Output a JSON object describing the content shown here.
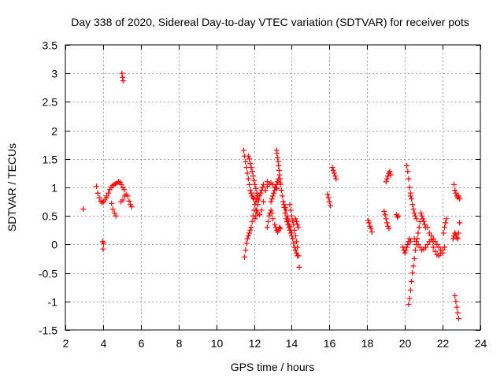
{
  "chart_data": {
    "type": "scatter",
    "title": "Day 338 of 2020, Sidereal Day-to-day VTEC variation (SDTVAR) for receiver pots",
    "xlabel": "GPS time / hours",
    "ylabel": "SDTVAR / TECUs",
    "xlim": [
      2,
      24
    ],
    "ylim": [
      -1.5,
      3.5
    ],
    "x_ticks": [
      2,
      4,
      6,
      8,
      10,
      12,
      14,
      16,
      18,
      20,
      22,
      24
    ],
    "x_tick_labels": [
      "2",
      "4",
      "6",
      "8",
      "10",
      "12",
      "14",
      "16",
      "18",
      "20",
      "22",
      "24"
    ],
    "y_ticks": [
      -1.5,
      -1,
      -0.5,
      0,
      0.5,
      1,
      1.5,
      2,
      2.5,
      3,
      3.5
    ],
    "y_tick_labels": [
      "-1.5",
      "-1",
      "-0.5",
      "0",
      "0.5",
      "1",
      "1.5",
      "2",
      "2.5",
      "3",
      "3.5"
    ],
    "grid": true,
    "marker": "+",
    "color": "#ff0000",
    "segments": [
      {
        "x": [
          2.95
        ],
        "y": [
          0.62
        ]
      },
      {
        "x": [
          3.65,
          3.72,
          3.8,
          3.88,
          3.95,
          4.02,
          4.1,
          4.18
        ],
        "y": [
          1.02,
          0.9,
          0.82,
          0.76,
          0.73,
          0.75,
          0.78,
          0.82
        ]
      },
      {
        "x": [
          3.98,
          4.0,
          4.03
        ],
        "y": [
          0.05,
          -0.08,
          0.02
        ]
      },
      {
        "x": [
          4.2,
          4.28,
          4.35,
          4.42,
          4.5,
          4.58,
          4.66,
          4.74,
          4.82,
          4.9,
          4.97,
          5.05,
          5.12
        ],
        "y": [
          0.85,
          0.9,
          0.96,
          1.0,
          1.03,
          1.05,
          1.06,
          1.08,
          1.1,
          1.09,
          1.05,
          1.0,
          0.96
        ]
      },
      {
        "x": [
          4.45,
          4.52,
          4.6,
          4.68
        ],
        "y": [
          0.72,
          0.62,
          0.55,
          0.5
        ]
      },
      {
        "x": [
          5.0,
          5.03,
          5.06
        ],
        "y": [
          3.0,
          2.93,
          2.87
        ]
      },
      {
        "x": [
          4.95,
          5.05,
          5.15,
          5.22,
          5.3,
          5.38,
          5.45,
          5.52
        ],
        "y": [
          0.75,
          0.78,
          0.85,
          0.88,
          0.85,
          0.76,
          0.7,
          0.66
        ]
      },
      {
        "x": [
          11.45,
          11.5,
          11.55,
          11.6,
          11.65,
          11.7,
          11.75,
          11.8,
          11.85,
          11.9,
          11.95,
          12.0
        ],
        "y": [
          1.65,
          1.55,
          1.45,
          1.35,
          1.25,
          1.15,
          1.05,
          0.95,
          0.9,
          0.85,
          0.82,
          0.8
        ]
      },
      {
        "x": [
          11.5,
          11.55,
          11.6,
          11.65,
          11.7,
          11.75,
          11.8,
          11.85,
          11.9,
          11.95,
          12.0,
          12.05,
          12.1,
          12.15,
          12.2
        ],
        "y": [
          -0.22,
          -0.1,
          0.02,
          0.1,
          0.15,
          0.2,
          0.25,
          0.3,
          0.4,
          0.5,
          0.6,
          0.7,
          0.75,
          0.8,
          0.85
        ]
      },
      {
        "x": [
          11.7,
          11.75,
          11.8,
          11.85,
          11.9,
          11.95,
          12.0,
          12.05,
          12.1,
          12.15,
          12.2
        ],
        "y": [
          1.55,
          1.5,
          1.42,
          1.35,
          1.28,
          1.2,
          1.12,
          1.05,
          0.98,
          0.9,
          0.85
        ]
      },
      {
        "x": [
          12.05,
          12.1,
          12.15,
          12.2,
          12.25,
          12.3,
          12.35,
          12.4,
          12.45,
          12.5
        ],
        "y": [
          0.45,
          0.5,
          0.6,
          0.7,
          0.78,
          0.85,
          0.9,
          0.95,
          1.0,
          1.05
        ]
      },
      {
        "x": [
          12.1,
          12.2,
          12.3,
          12.4,
          12.5,
          12.6,
          12.7
        ],
        "y": [
          0.6,
          0.55,
          0.52,
          0.6,
          0.75,
          0.95,
          1.1
        ]
      },
      {
        "x": [
          12.6,
          12.7,
          12.8,
          12.9,
          13.0,
          13.1,
          13.2
        ],
        "y": [
          0.95,
          1.02,
          1.05,
          1.08,
          1.05,
          1.0,
          0.98
        ]
      },
      {
        "x": [
          12.7,
          12.75,
          12.8,
          12.85,
          12.9,
          12.95,
          13.0
        ],
        "y": [
          0.3,
          0.4,
          0.5,
          0.55,
          0.6,
          0.55,
          0.45
        ]
      },
      {
        "x": [
          12.9,
          12.95,
          13.0,
          13.05,
          13.1,
          13.15,
          13.2,
          13.25,
          13.3
        ],
        "y": [
          0.75,
          0.8,
          0.85,
          0.9,
          0.95,
          1.0,
          1.05,
          1.1,
          1.15
        ]
      },
      {
        "x": [
          13.2,
          13.22,
          13.25,
          13.28,
          13.3,
          13.33,
          13.35,
          13.38,
          13.4
        ],
        "y": [
          1.65,
          1.6,
          1.52,
          1.45,
          1.38,
          1.3,
          1.22,
          1.15,
          1.08
        ]
      },
      {
        "x": [
          13.1,
          13.15,
          13.2,
          13.25,
          13.3,
          13.35,
          13.4
        ],
        "y": [
          0.35,
          0.3,
          0.25,
          0.22,
          0.25,
          0.3,
          0.28
        ]
      },
      {
        "x": [
          13.4,
          13.45,
          13.5,
          13.55,
          13.6,
          13.65,
          13.7,
          13.75,
          13.8,
          13.85,
          13.9,
          13.95,
          14.0
        ],
        "y": [
          1.05,
          0.95,
          0.85,
          0.75,
          0.65,
          0.55,
          0.45,
          0.4,
          0.35,
          0.3,
          0.25,
          0.2,
          0.15
        ]
      },
      {
        "x": [
          13.6,
          13.65,
          13.7,
          13.75,
          13.8,
          13.85,
          13.9,
          13.95,
          14.0,
          14.05,
          14.1,
          14.15,
          14.2,
          14.25,
          14.3
        ],
        "y": [
          0.7,
          0.65,
          0.6,
          0.5,
          0.45,
          0.4,
          0.32,
          0.25,
          0.2,
          0.1,
          0.02,
          -0.05,
          -0.1,
          -0.15,
          -0.2
        ]
      },
      {
        "x": [
          13.9,
          13.95,
          14.0,
          14.05,
          14.1,
          14.15,
          14.2,
          14.25,
          14.3,
          14.35,
          14.4
        ],
        "y": [
          0.7,
          0.6,
          0.5,
          0.42,
          0.35,
          0.25,
          0.15,
          0.05,
          -0.05,
          -0.2,
          -0.4
        ]
      },
      {
        "x": [
          14.2,
          14.25,
          14.3,
          14.35
        ],
        "y": [
          0.45,
          0.4,
          0.35,
          0.3
        ]
      },
      {
        "x": [
          15.9,
          15.95,
          16.0,
          16.05
        ],
        "y": [
          0.88,
          0.82,
          0.75,
          0.68
        ]
      },
      {
        "x": [
          16.15,
          16.2,
          16.25,
          16.3,
          16.35
        ],
        "y": [
          1.35,
          1.3,
          1.25,
          1.2,
          1.15
        ]
      },
      {
        "x": [
          18.05,
          18.1,
          18.15,
          18.2,
          18.25
        ],
        "y": [
          0.42,
          0.38,
          0.32,
          0.28,
          0.22
        ]
      },
      {
        "x": [
          18.9,
          18.95,
          19.0
        ],
        "y": [
          0.58,
          0.52,
          0.45
        ]
      },
      {
        "x": [
          19.0,
          19.05,
          19.1,
          19.15,
          19.2,
          19.25
        ],
        "y": [
          1.1,
          1.15,
          1.2,
          1.25,
          1.28,
          1.22
        ]
      },
      {
        "x": [
          19.05,
          19.1,
          19.15
        ],
        "y": [
          0.38,
          0.32,
          0.28
        ]
      },
      {
        "x": [
          19.55,
          19.6,
          19.65
        ],
        "y": [
          0.52,
          0.48,
          0.5
        ]
      },
      {
        "x": [
          19.9,
          19.95,
          20.0,
          20.05,
          20.1,
          20.15,
          20.2,
          20.25,
          20.3
        ],
        "y": [
          -0.05,
          -0.1,
          -0.15,
          -0.1,
          -0.05,
          0.0,
          0.05,
          0.1,
          0.05
        ]
      },
      {
        "x": [
          20.1,
          20.15,
          20.2,
          20.25,
          20.3
        ],
        "y": [
          1.38,
          1.28,
          1.15,
          1.0,
          0.85
        ]
      },
      {
        "x": [
          20.2,
          20.25,
          20.3,
          20.35,
          20.4,
          20.45,
          20.5,
          20.55,
          20.6,
          20.65,
          20.7,
          20.75,
          20.8
        ],
        "y": [
          -1.05,
          -0.95,
          -0.8,
          -0.65,
          -0.5,
          -0.38,
          -0.25,
          -0.1,
          0.0,
          0.1,
          0.2,
          0.3,
          0.4
        ]
      },
      {
        "x": [
          20.3,
          20.35,
          20.4,
          20.45,
          20.5,
          20.55,
          20.6
        ],
        "y": [
          0.9,
          0.8,
          0.7,
          0.62,
          0.55,
          0.5,
          0.45
        ]
      },
      {
        "x": [
          20.5,
          20.6,
          20.7,
          20.8,
          20.9,
          21.0,
          21.1,
          21.2,
          21.3,
          21.4,
          21.5
        ],
        "y": [
          0.1,
          0.05,
          0.0,
          -0.05,
          -0.1,
          -0.08,
          -0.05,
          0.0,
          0.05,
          0.08,
          0.05
        ]
      },
      {
        "x": [
          20.85,
          20.9,
          20.95,
          21.0,
          21.05,
          21.1
        ],
        "y": [
          0.55,
          0.5,
          0.45,
          0.4,
          0.35,
          0.3
        ]
      },
      {
        "x": [
          21.2,
          21.3,
          21.4,
          21.5,
          21.6,
          21.7,
          21.8,
          21.9,
          22.0
        ],
        "y": [
          0.3,
          0.2,
          0.15,
          0.1,
          0.05,
          0.0,
          -0.05,
          -0.1,
          -0.15
        ]
      },
      {
        "x": [
          21.5,
          21.6,
          21.7,
          21.8,
          21.9,
          22.0,
          22.1
        ],
        "y": [
          -0.05,
          -0.12,
          -0.18,
          -0.2,
          -0.15,
          -0.1,
          -0.05
        ]
      },
      {
        "x": [
          22.05,
          22.1,
          22.15,
          22.2
        ],
        "y": [
          0.2,
          0.3,
          0.38,
          0.45
        ]
      },
      {
        "x": [
          22.6,
          22.65,
          22.7,
          22.75,
          22.8,
          22.85,
          22.9
        ],
        "y": [
          1.05,
          0.95,
          0.9,
          0.85,
          0.82,
          0.85,
          0.8
        ]
      },
      {
        "x": [
          22.55,
          22.6,
          22.65,
          22.7,
          22.75,
          22.8,
          22.85,
          22.9
        ],
        "y": [
          0.1,
          0.15,
          0.2,
          0.18,
          0.12,
          0.1,
          0.2,
          0.38
        ]
      },
      {
        "x": [
          22.65,
          22.7,
          22.75,
          22.8,
          22.85
        ],
        "y": [
          -0.9,
          -1.0,
          -1.1,
          -1.2,
          -1.3
        ]
      }
    ]
  }
}
